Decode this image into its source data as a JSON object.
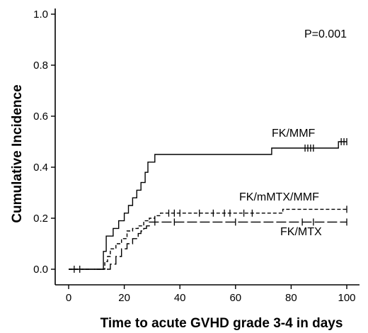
{
  "chart_data": {
    "type": "line",
    "title": "",
    "xlabel": "Time to acute GVHD grade 3-4 in days",
    "ylabel": "Cumulative Incidence",
    "xlim": [
      0,
      100
    ],
    "ylim": [
      0,
      1.0
    ],
    "x_ticks": [
      "0",
      "20",
      "40",
      "60",
      "80",
      "100"
    ],
    "y_ticks": [
      "0.0",
      "0.2",
      "0.4",
      "0.6",
      "0.8",
      "1.0"
    ],
    "grid": false,
    "legend": "none",
    "annotations": [
      {
        "text": "P=0.001",
        "position": "top-right"
      }
    ],
    "series": [
      {
        "name": "FK/MMF",
        "style": "solid",
        "steps": [
          [
            0,
            0
          ],
          [
            12,
            0
          ],
          [
            12.5,
            0.07
          ],
          [
            13.5,
            0.13
          ],
          [
            16,
            0.16
          ],
          [
            18,
            0.19
          ],
          [
            20,
            0.22
          ],
          [
            21.5,
            0.25
          ],
          [
            23,
            0.28
          ],
          [
            24.5,
            0.31
          ],
          [
            26,
            0.34
          ],
          [
            27.5,
            0.38
          ],
          [
            28.5,
            0.42
          ],
          [
            31,
            0.45
          ],
          [
            73,
            0.475
          ],
          [
            97,
            0.5
          ],
          [
            100,
            0.5
          ]
        ],
        "censor_x": [
          85,
          86,
          87,
          88,
          98,
          99,
          100
        ]
      },
      {
        "name": "FK/mMTX/MMF",
        "style": "dashed",
        "steps": [
          [
            0,
            0
          ],
          [
            12,
            0
          ],
          [
            13,
            0.03
          ],
          [
            14,
            0.05
          ],
          [
            15,
            0.08
          ],
          [
            17,
            0.1
          ],
          [
            19,
            0.12
          ],
          [
            21,
            0.15
          ],
          [
            23,
            0.16
          ],
          [
            25,
            0.17
          ],
          [
            27,
            0.19
          ],
          [
            29,
            0.2
          ],
          [
            31,
            0.21
          ],
          [
            33,
            0.22
          ],
          [
            77,
            0.235
          ],
          [
            100,
            0.235
          ]
        ],
        "censor_x": [
          36,
          38,
          40,
          47,
          52,
          56,
          58,
          63,
          66,
          100
        ]
      },
      {
        "name": "FK/MTX",
        "style": "long-dash",
        "steps": [
          [
            0,
            0
          ],
          [
            14,
            0
          ],
          [
            15,
            0.02
          ],
          [
            17,
            0.05
          ],
          [
            19,
            0.08
          ],
          [
            21,
            0.1
          ],
          [
            23,
            0.12
          ],
          [
            25,
            0.14
          ],
          [
            26,
            0.15
          ],
          [
            27,
            0.16
          ],
          [
            28,
            0.17
          ],
          [
            29,
            0.185
          ],
          [
            100,
            0.185
          ]
        ],
        "censor_x": [
          2,
          4,
          31,
          38,
          60,
          84,
          88,
          100
        ]
      }
    ]
  }
}
